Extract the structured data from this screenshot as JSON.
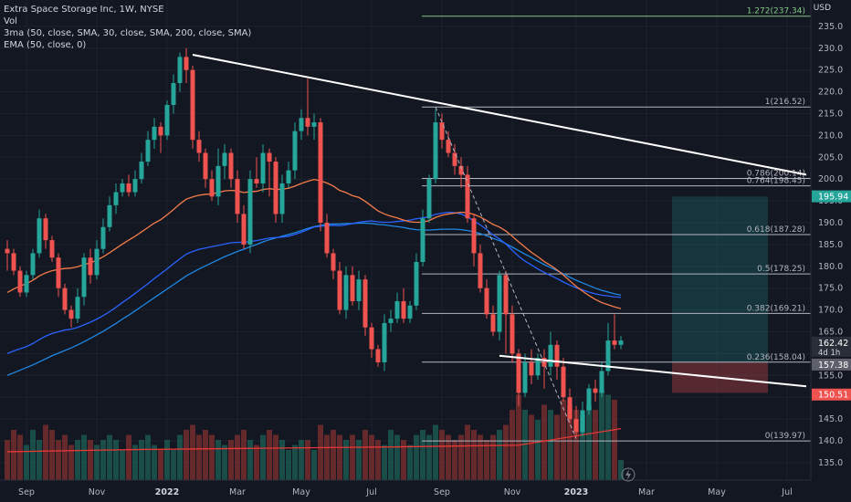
{
  "legend": {
    "title": "Extra Space Storage Inc, 1W, NYSE",
    "vol": "Vol",
    "sma": "3ma (50, close, SMA, 30, close, SMA, 200, close, SMA)",
    "ema": "EMA (50, close, 0)"
  },
  "chart_data": {
    "type": "candlestick",
    "currency": "USD",
    "ylim": [
      131,
      240
    ],
    "y_ticks": [
      135,
      140,
      145,
      150,
      155,
      160,
      165,
      170,
      175,
      180,
      185,
      190,
      195,
      200,
      205,
      210,
      215,
      220,
      225,
      230,
      235
    ],
    "x_labels": [
      "Sep",
      "Nov",
      "2022",
      "Mar",
      "May",
      "Jul",
      "Sep",
      "Nov",
      "2023",
      "Mar",
      "May",
      "Jul"
    ],
    "colors": {
      "up": "#26a69a",
      "down": "#ef5350",
      "ema": "#f57c4a",
      "sma_fast": "#2962ff",
      "sma_slow": "#1e88e5",
      "sma_200": "#e53935",
      "trend": "#ffffff",
      "fib": "#b2b5be",
      "target_zone": "#26a69a",
      "stop_zone": "#ef5350"
    },
    "fib_levels": [
      {
        "label": "1.272(237.34)",
        "value": 237.34,
        "color": "#81c784"
      },
      {
        "label": "1(216.52)",
        "value": 216.52,
        "color": "#b2b5be"
      },
      {
        "label": "0.786(200.14)",
        "value": 200.14,
        "color": "#b2b5be"
      },
      {
        "label": "0.764(198.45)",
        "value": 198.45,
        "color": "#b2b5be"
      },
      {
        "label": "0.618(187.28)",
        "value": 187.28,
        "color": "#b2b5be"
      },
      {
        "label": "0.5(178.25)",
        "value": 178.25,
        "color": "#b2b5be"
      },
      {
        "label": "0.382(169.21)",
        "value": 169.21,
        "color": "#b2b5be"
      },
      {
        "label": "0.236(158.04)",
        "value": 158.04,
        "color": "#b2b5be"
      },
      {
        "label": "0(139.97)",
        "value": 139.97,
        "color": "#b2b5be"
      }
    ],
    "price_badges": [
      {
        "value": 195.94,
        "label": "195.94",
        "color": "#26a69a"
      },
      {
        "value": 162.42,
        "label": "162.42",
        "sub": "4d 1h",
        "color": "#2a2e39"
      },
      {
        "value": 157.38,
        "label": "157.38",
        "color": "#5d606b"
      },
      {
        "value": 150.51,
        "label": "150.51",
        "color": "#ef5350"
      }
    ],
    "candles": [
      [
        184,
        183,
        186,
        179
      ],
      [
        183,
        179,
        184,
        178
      ],
      [
        179,
        174,
        180,
        173
      ],
      [
        174,
        178,
        179,
        173
      ],
      [
        178,
        183,
        184,
        177
      ],
      [
        183,
        191,
        193,
        182
      ],
      [
        191,
        186,
        192,
        184
      ],
      [
        186,
        182,
        187,
        181
      ],
      [
        182,
        175,
        183,
        173
      ],
      [
        175,
        170,
        176,
        169
      ],
      [
        170,
        168,
        171,
        166
      ],
      [
        168,
        173,
        175,
        167
      ],
      [
        173,
        182,
        183,
        171
      ],
      [
        182,
        178,
        184,
        176
      ],
      [
        178,
        184,
        186,
        177
      ],
      [
        184,
        189,
        191,
        183
      ],
      [
        189,
        194,
        196,
        188
      ],
      [
        194,
        197,
        199,
        192
      ],
      [
        197,
        199,
        200,
        196
      ],
      [
        199,
        197,
        201,
        196
      ],
      [
        197,
        200,
        202,
        196
      ],
      [
        200,
        204,
        206,
        199
      ],
      [
        204,
        209,
        211,
        203
      ],
      [
        209,
        212,
        214,
        207
      ],
      [
        212,
        210,
        213,
        206
      ],
      [
        210,
        217,
        218,
        209
      ],
      [
        217,
        222,
        224,
        215
      ],
      [
        222,
        228,
        229,
        220
      ],
      [
        228,
        225,
        230,
        222
      ],
      [
        225,
        209,
        226,
        207
      ],
      [
        209,
        206,
        211,
        204
      ],
      [
        206,
        200,
        207,
        198
      ],
      [
        200,
        196,
        202,
        195
      ],
      [
        196,
        203,
        207,
        194
      ],
      [
        203,
        206,
        208,
        200
      ],
      [
        206,
        200,
        207,
        198
      ],
      [
        200,
        192,
        202,
        190
      ],
      [
        192,
        185,
        194,
        184
      ],
      [
        185,
        200,
        202,
        183
      ],
      [
        200,
        199,
        205,
        198
      ],
      [
        199,
        206,
        208,
        197
      ],
      [
        206,
        204,
        207,
        196
      ],
      [
        204,
        192,
        205,
        190
      ],
      [
        192,
        199,
        201,
        190
      ],
      [
        199,
        202,
        204,
        198
      ],
      [
        202,
        211,
        213,
        200
      ],
      [
        211,
        214,
        216,
        209
      ],
      [
        214,
        212,
        223,
        210
      ],
      [
        212,
        213,
        215,
        209
      ],
      [
        213,
        190,
        214,
        188
      ],
      [
        190,
        183,
        192,
        182
      ],
      [
        183,
        179,
        184,
        177
      ],
      [
        179,
        170,
        181,
        169
      ],
      [
        170,
        178,
        180,
        168
      ],
      [
        178,
        172,
        180,
        171
      ],
      [
        172,
        177,
        179,
        170
      ],
      [
        177,
        166,
        178,
        164
      ],
      [
        166,
        161,
        167,
        159
      ],
      [
        161,
        158,
        162,
        157
      ],
      [
        158,
        167,
        169,
        156
      ],
      [
        167,
        168,
        170,
        165
      ],
      [
        168,
        172,
        174,
        167
      ],
      [
        172,
        168,
        175,
        167
      ],
      [
        168,
        171,
        172,
        167
      ],
      [
        171,
        181,
        183,
        170
      ],
      [
        181,
        191,
        193,
        180
      ],
      [
        191,
        200,
        201,
        190
      ],
      [
        200,
        213,
        216,
        199
      ],
      [
        213,
        209,
        215,
        207
      ],
      [
        209,
        206,
        211,
        205
      ],
      [
        206,
        203,
        208,
        201
      ],
      [
        203,
        201,
        205,
        198
      ],
      [
        201,
        191,
        203,
        190
      ],
      [
        191,
        183,
        192,
        180
      ],
      [
        183,
        175,
        185,
        174
      ],
      [
        175,
        169,
        177,
        168
      ],
      [
        169,
        165,
        171,
        164
      ],
      [
        165,
        178,
        179,
        163
      ],
      [
        178,
        169,
        179,
        160
      ],
      [
        169,
        160,
        171,
        158
      ],
      [
        160,
        151,
        161,
        148
      ],
      [
        151,
        158,
        160,
        150
      ],
      [
        158,
        155,
        161,
        153
      ],
      [
        155,
        159,
        160,
        154
      ],
      [
        159,
        157,
        161,
        152
      ],
      [
        157,
        162,
        165,
        155
      ],
      [
        162,
        157,
        163,
        154
      ],
      [
        157,
        150,
        159,
        149
      ],
      [
        150,
        145,
        152,
        144
      ],
      [
        145,
        142,
        148,
        141
      ],
      [
        142,
        147,
        149,
        141
      ],
      [
        147,
        152,
        153,
        146
      ],
      [
        152,
        151,
        154,
        149
      ],
      [
        151,
        156,
        158,
        150
      ],
      [
        156,
        163,
        167,
        155
      ],
      [
        163,
        162,
        169,
        161
      ],
      [
        162,
        163,
        164,
        161
      ]
    ],
    "volume": [
      0.4,
      0.5,
      0.45,
      0.35,
      0.5,
      0.4,
      0.55,
      0.5,
      0.4,
      0.45,
      0.35,
      0.4,
      0.45,
      0.4,
      0.35,
      0.4,
      0.45,
      0.4,
      0.3,
      0.45,
      0.35,
      0.4,
      0.45,
      0.35,
      0.3,
      0.4,
      0.3,
      0.45,
      0.5,
      0.55,
      0.45,
      0.5,
      0.45,
      0.4,
      0.35,
      0.4,
      0.45,
      0.5,
      0.4,
      0.35,
      0.45,
      0.5,
      0.45,
      0.4,
      0.3,
      0.35,
      0.4,
      0.4,
      0.3,
      0.55,
      0.45,
      0.5,
      0.45,
      0.4,
      0.45,
      0.4,
      0.5,
      0.45,
      0.4,
      0.35,
      0.5,
      0.45,
      0.4,
      0.35,
      0.45,
      0.5,
      0.45,
      0.55,
      0.5,
      0.45,
      0.4,
      0.45,
      0.55,
      0.5,
      0.45,
      0.4,
      0.45,
      0.5,
      0.55,
      0.7,
      0.85,
      0.7,
      0.65,
      0.6,
      0.75,
      0.7,
      0.65,
      0.8,
      0.75,
      0.7,
      0.65,
      0.75,
      0.7,
      0.9,
      0.85,
      0.8,
      0.2
    ],
    "ema50": [
      174,
      174.8,
      175.5,
      176,
      176.8,
      177.8,
      178.5,
      179,
      179.3,
      179.5,
      179.6,
      179.9,
      180.4,
      180.8,
      181.4,
      182.2,
      183.1,
      184.1,
      185.1,
      186,
      186.9,
      187.9,
      188.9,
      189.9,
      190.7,
      191.8,
      193,
      194.3,
      195.4,
      195.9,
      196.3,
      196.5,
      196.6,
      196.9,
      197.3,
      197.4,
      197.3,
      196.9,
      197.1,
      197.2,
      197.6,
      197.8,
      197.6,
      197.7,
      197.9,
      198.4,
      199,
      199.5,
      199.9,
      199.6,
      199.1,
      198.4,
      197.4,
      196.9,
      196.2,
      195.8,
      194.9,
      193.8,
      192.7,
      192,
      191.5,
      191.1,
      190.6,
      190.2,
      190.1,
      190.1,
      190.5,
      191.2,
      191.7,
      192,
      192.2,
      192.4,
      192.3,
      191.9,
      191.3,
      190.5,
      189.6,
      189,
      188.1,
      186.9,
      185.6,
      184.4,
      183.2,
      182.2,
      181.1,
      180.2,
      179.2,
      178,
      176.7,
      175.4,
      174.3,
      173.3,
      172.4,
      171.7,
      171.2,
      170.7,
      170.3
    ],
    "sma_fast": [
      160,
      160.6,
      161.1,
      161.6,
      162.3,
      163.2,
      164,
      164.6,
      165,
      165.4,
      165.6,
      166,
      166.6,
      167.2,
      167.9,
      168.7,
      169.6,
      170.6,
      171.7,
      172.7,
      173.8,
      174.9,
      176,
      177.2,
      178.3,
      179.4,
      180.6,
      181.7,
      182.8,
      183.4,
      183.9,
      184.2,
      184.5,
      184.8,
      185.1,
      185.4,
      185.5,
      185.5,
      185.7,
      185.9,
      186.2,
      186.5,
      186.6,
      186.7,
      186.9,
      187.3,
      187.8,
      188.4,
      189,
      189.2,
      189.3,
      189.4,
      189.3,
      189.5,
      189.8,
      190.1,
      190.3,
      190.4,
      190.2,
      190.1,
      190.1,
      190.3,
      190.4,
      190.6,
      190.9,
      191.1,
      191.4,
      191.9,
      192.2,
      192.4,
      192.3,
      192,
      191.3,
      190.4,
      189.5,
      188.4,
      187.2,
      186.3,
      185.1,
      183.7,
      182.3,
      181.2,
      180.3,
      179.4,
      178.6,
      177.9,
      177.2,
      176.4,
      175.7,
      175.1,
      174.6,
      174.1,
      173.7,
      173.4,
      173.2,
      173,
      172.9
    ],
    "sma_slow": [
      155,
      155.6,
      156.2,
      156.8,
      157.4,
      158.1,
      158.8,
      159.5,
      160.1,
      160.7,
      161.3,
      162,
      162.7,
      163.5,
      164.3,
      165.1,
      166,
      166.9,
      167.9,
      168.8,
      169.8,
      170.8,
      171.8,
      172.8,
      173.8,
      174.8,
      175.8,
      176.8,
      177.8,
      178.6,
      179.4,
      180.1,
      180.8,
      181.5,
      182.2,
      182.8,
      183.4,
      183.9,
      184.5,
      185,
      185.6,
      186.1,
      186.5,
      186.9,
      187.3,
      187.7,
      188.2,
      188.7,
      189.1,
      189.4,
      189.6,
      189.7,
      189.7,
      189.8,
      189.8,
      189.9,
      189.9,
      189.8,
      189.6,
      189.5,
      189.3,
      189.1,
      188.9,
      188.6,
      188.4,
      188.3,
      188.3,
      188.4,
      188.5,
      188.5,
      188.5,
      188.4,
      188.2,
      187.9,
      187.5,
      187,
      186.4,
      185.9,
      185.2,
      184.4,
      183.6,
      182.8,
      182,
      181.2,
      180.4,
      179.7,
      179,
      178.3,
      177.5,
      176.8,
      176.2,
      175.6,
      175,
      174.5,
      174.1,
      173.7,
      173.4
    ],
    "sma_200": [
      [
        0,
        137.5
      ],
      [
        20,
        138
      ],
      [
        40,
        138.3
      ],
      [
        60,
        138.6
      ],
      [
        80,
        139
      ],
      [
        96,
        142.8
      ]
    ],
    "trend_upper": [
      [
        29,
        228.5
      ],
      [
        125,
        201
      ]
    ],
    "trend_lower": [
      [
        77,
        159.5
      ],
      [
        125,
        152.5
      ]
    ],
    "dashed_leg": [
      [
        67,
        216.5
      ],
      [
        89,
        140.5
      ]
    ],
    "target_zone": {
      "x0": 104,
      "x1": 119,
      "y0": 158,
      "y1": 196
    },
    "stop_zone": {
      "x0": 104,
      "x1": 119,
      "y0": 151,
      "y1": 158
    }
  }
}
